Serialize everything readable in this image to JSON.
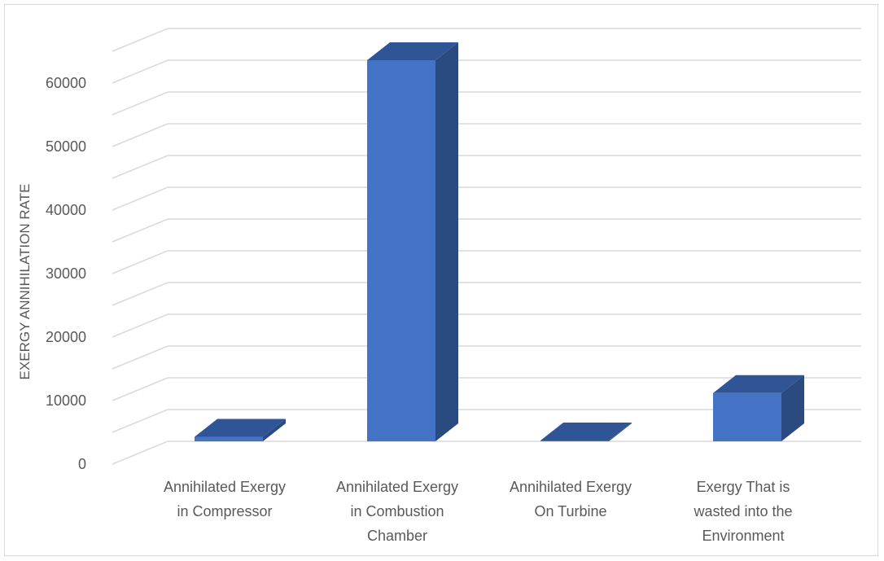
{
  "chart_data": {
    "type": "bar",
    "variant": "3d-column",
    "title": "",
    "xlabel": "",
    "ylabel": "EXERGY ANNIHILATION RATE",
    "ylim": [
      0,
      65000
    ],
    "yticks": [
      0,
      10000,
      20000,
      30000,
      40000,
      50000,
      60000
    ],
    "ytick_labels": [
      "0",
      "10000",
      "20000",
      "30000",
      "40000",
      "50000",
      "60000"
    ],
    "categories": [
      [
        "Annihilated Exergy",
        "in Compressor"
      ],
      [
        "Annihilated Exergy",
        "in Combustion",
        "Chamber"
      ],
      [
        "Annihilated Exergy",
        "On Turbine"
      ],
      [
        "Exergy That is",
        "wasted into the",
        "Environment"
      ]
    ],
    "series": [
      {
        "values": [
          700,
          60000,
          100,
          7600
        ]
      }
    ],
    "grid": true,
    "legend": "none",
    "colors": {
      "bar_front": "#4472c4",
      "bar_top": "#2f5597",
      "bar_side": "#2a4a80",
      "grid": "#d9d9d9",
      "text": "#595959",
      "border": "#d9d9d9"
    }
  }
}
